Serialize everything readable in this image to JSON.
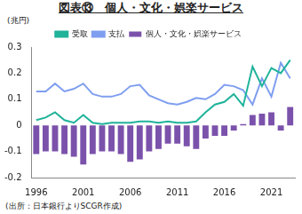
{
  "chart_data": {
    "type": "bar",
    "title": "図表⑬　個人・文化・娯楽サービス",
    "ylabel": "(兆円)",
    "source": "(出所：日本銀行よりSCGR作成)",
    "categories": [
      "1996",
      null,
      null,
      null,
      null,
      "2001",
      null,
      null,
      null,
      null,
      "2006",
      null,
      null,
      null,
      null,
      "2011",
      null,
      null,
      null,
      null,
      "2016",
      null,
      null,
      null,
      null,
      "2021",
      null,
      null
    ],
    "series": [
      {
        "name": "個人・文化・娯楽サービス",
        "type": "bar",
        "color": "#7b52ab",
        "values": [
          -0.11,
          -0.1,
          -0.1,
          -0.11,
          -0.12,
          -0.15,
          -0.11,
          -0.1,
          -0.1,
          -0.11,
          -0.14,
          -0.13,
          -0.1,
          -0.09,
          -0.07,
          -0.07,
          -0.08,
          -0.09,
          -0.05,
          -0.04,
          -0.04,
          -0.02,
          0.005,
          0.04,
          0.045,
          0.05,
          -0.02,
          0.07
        ]
      },
      {
        "name": "受取",
        "type": "line",
        "color": "#1fb39a",
        "values": [
          0.02,
          0.03,
          0.05,
          0.02,
          0.01,
          0.04,
          0.01,
          0.005,
          0.01,
          0.01,
          0.01,
          0.015,
          0.015,
          0.01,
          0.015,
          0.01,
          0.01,
          0.015,
          0.05,
          0.08,
          0.09,
          0.12,
          0.075,
          0.225,
          0.15,
          0.22,
          0.2,
          0.25
        ]
      },
      {
        "name": "支払",
        "type": "line",
        "color": "#7f9ef0",
        "values": [
          0.13,
          0.13,
          0.16,
          0.13,
          0.14,
          0.16,
          0.12,
          0.11,
          0.11,
          0.12,
          0.15,
          0.155,
          0.115,
          0.1,
          0.085,
          0.08,
          0.09,
          0.105,
          0.1,
          0.12,
          0.155,
          0.15,
          0.135,
          0.08,
          0.18,
          0.11,
          0.24,
          0.18
        ]
      }
    ],
    "ylim": [
      -0.2,
      0.3
    ],
    "yticks": [
      -0.2,
      -0.1,
      0,
      0.1,
      0.2,
      0.3
    ],
    "grid": false,
    "legend": "top"
  }
}
